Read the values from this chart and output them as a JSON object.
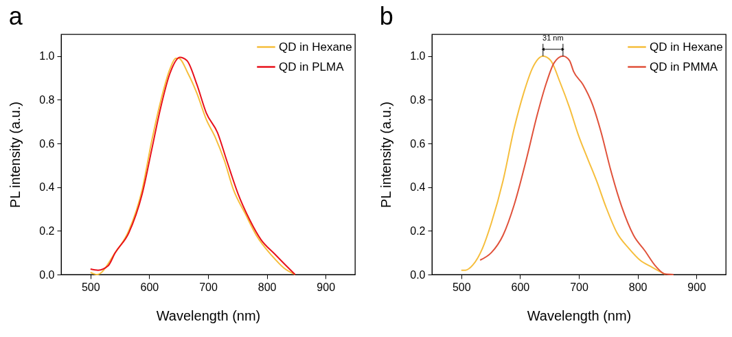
{
  "chart_data": [
    {
      "type": "line",
      "title": "a",
      "xlabel": "Wavelength (nm)",
      "ylabel": "PL intensity (a.u.)",
      "xlim": [
        450,
        950
      ],
      "xticks": [
        500,
        600,
        700,
        800,
        900
      ],
      "ylim": [
        0,
        1.1
      ],
      "yticks": [
        {
          "value": 0,
          "label": "0.0"
        },
        {
          "value": 0.2,
          "label": "0.2"
        },
        {
          "value": 0.4,
          "label": "0.4"
        },
        {
          "value": 0.6,
          "label": "0.6"
        },
        {
          "value": 0.8,
          "label": "0.8"
        },
        {
          "value": 1,
          "label": "1.0"
        }
      ],
      "legend": "top right",
      "grid": false,
      "series": [
        {
          "name": "QD in Hexane",
          "color": "#f6be3c",
          "x": [
            500,
            511,
            542,
            565,
            588,
            604,
            619,
            635,
            645,
            650,
            666,
            681,
            697,
            712,
            728,
            743,
            763,
            782,
            809,
            829,
            848
          ],
          "values": [
            0.01,
            0.0,
            0.1,
            0.2,
            0.39,
            0.61,
            0.79,
            0.94,
            0.99,
            0.99,
            0.92,
            0.83,
            0.71,
            0.63,
            0.52,
            0.39,
            0.28,
            0.18,
            0.085,
            0.03,
            0.0
          ]
        },
        {
          "name": "QD in PLMA",
          "color": "#e8101a",
          "x": [
            500,
            513,
            530,
            542,
            565,
            588,
            604,
            619,
            635,
            652,
            664,
            681,
            697,
            716,
            732,
            751,
            771,
            790,
            813,
            833,
            848
          ],
          "values": [
            0.025,
            0.02,
            0.04,
            0.1,
            0.19,
            0.37,
            0.57,
            0.76,
            0.92,
            0.995,
            0.98,
            0.87,
            0.74,
            0.65,
            0.52,
            0.37,
            0.25,
            0.16,
            0.095,
            0.04,
            0.0
          ]
        }
      ]
    },
    {
      "type": "line",
      "title": "b",
      "xlabel": "Wavelength (nm)",
      "ylabel": "PL intensity (a.u.)",
      "xlim": [
        450,
        950
      ],
      "xticks": [
        500,
        600,
        700,
        800,
        900
      ],
      "ylim": [
        0,
        1.1
      ],
      "yticks": [
        {
          "value": 0,
          "label": "0.0"
        },
        {
          "value": 0.2,
          "label": "0.2"
        },
        {
          "value": 0.4,
          "label": "0.4"
        },
        {
          "value": 0.6,
          "label": "0.6"
        },
        {
          "value": 0.8,
          "label": "0.8"
        },
        {
          "value": 1,
          "label": "1.0"
        }
      ],
      "legend": "top right",
      "grid": false,
      "annotations": [
        "31 nm"
      ],
      "series": [
        {
          "name": "QD in Hexane",
          "color": "#f6be3c",
          "x": [
            500,
            507,
            520,
            536,
            551,
            571,
            590,
            606,
            621,
            639,
            652,
            668,
            684,
            699,
            715,
            730,
            746,
            765,
            785,
            804,
            824,
            847
          ],
          "values": [
            0.02,
            0.02,
            0.045,
            0.12,
            0.235,
            0.43,
            0.67,
            0.83,
            0.945,
            1.0,
            0.98,
            0.88,
            0.765,
            0.64,
            0.53,
            0.43,
            0.31,
            0.19,
            0.12,
            0.066,
            0.034,
            0.0
          ]
        },
        {
          "name": "QD in PMMA",
          "color": "#e0513a",
          "x": [
            532,
            551,
            571,
            590,
            610,
            629,
            645,
            658,
            673,
            684,
            691,
            707,
            723,
            738,
            754,
            773,
            793,
            812,
            832,
            847,
            861
          ],
          "values": [
            0.066,
            0.1,
            0.18,
            0.32,
            0.52,
            0.73,
            0.88,
            0.97,
            1.0,
            0.98,
            0.93,
            0.87,
            0.78,
            0.65,
            0.48,
            0.31,
            0.18,
            0.11,
            0.034,
            0.002,
            0.0
          ]
        }
      ]
    }
  ]
}
